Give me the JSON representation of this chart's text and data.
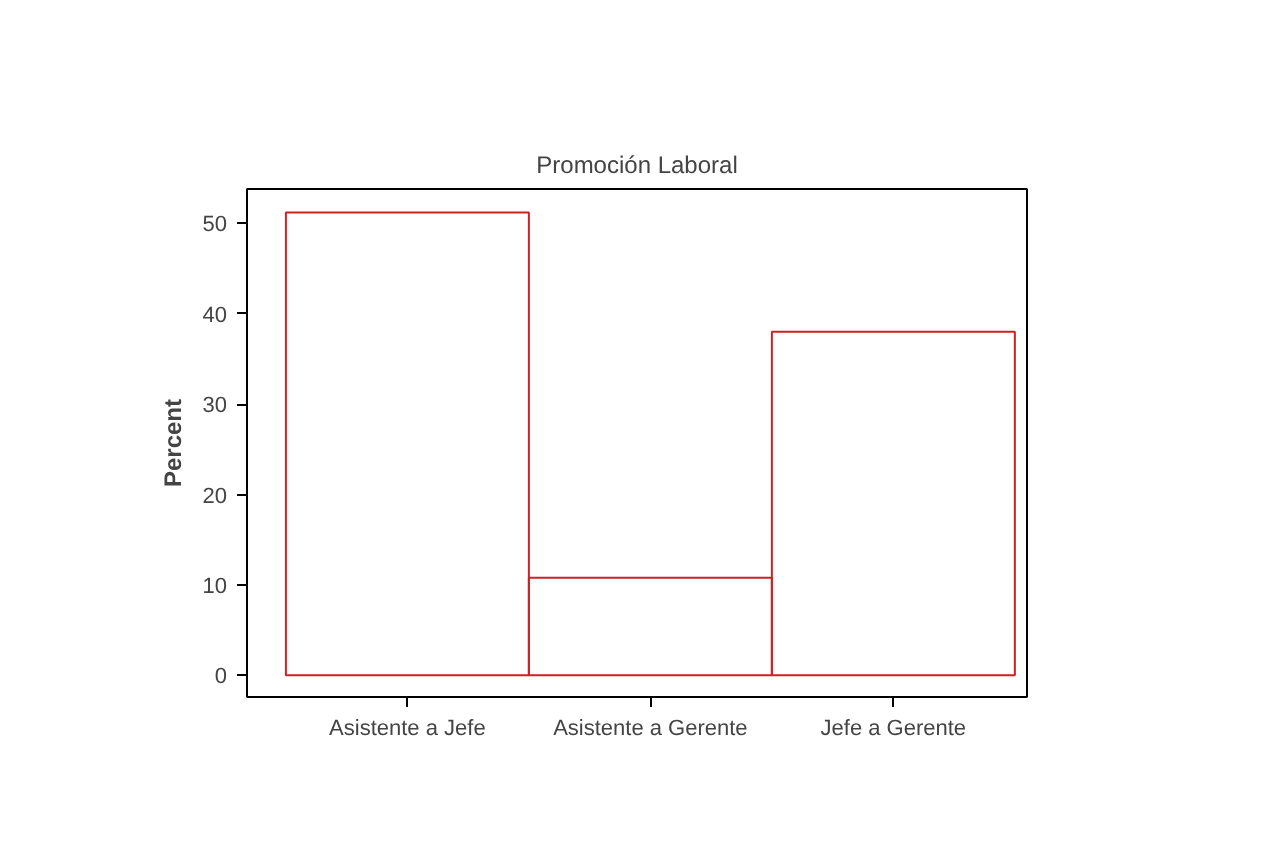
{
  "chart_data": {
    "type": "bar",
    "title": "Promoción Laboral",
    "ylabel": "Percent",
    "categories": [
      "Asistente a Jefe",
      "Asistente a Gerente",
      "Jefe a Gerente"
    ],
    "values": [
      51.2,
      10.8,
      38.0
    ],
    "color": "#cc2222",
    "ylim": [
      -2.4,
      53.8
    ],
    "yticks": [
      0,
      10,
      20,
      30,
      40,
      50
    ]
  }
}
